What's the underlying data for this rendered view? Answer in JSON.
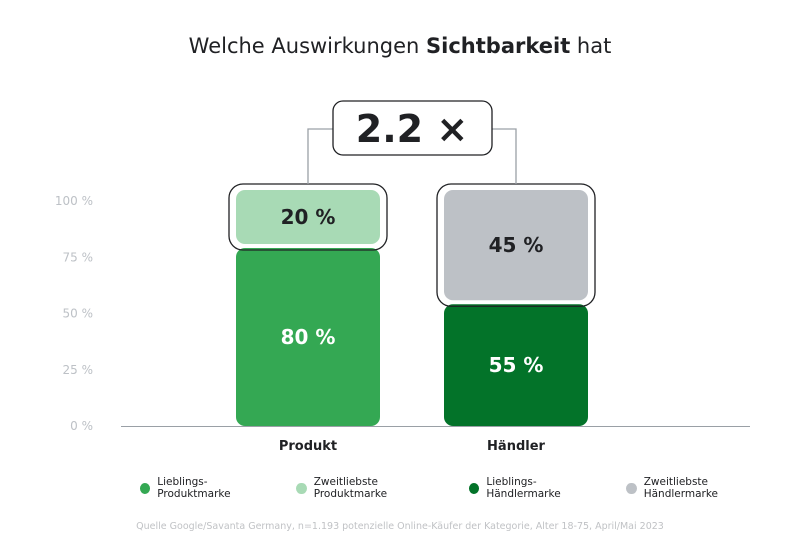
{
  "title": {
    "prefix": "Welche Auswirkungen ",
    "bold": "Sichtbarkeit",
    "suffix": " hat"
  },
  "multiplier_label": "2.2 ×",
  "source": "Quelle Google/Savanta Germany, n=1.193 potenzielle Online-Käufer der Kategorie, Alter 18-75, April/Mai 2023",
  "chart_data": {
    "type": "bar",
    "stacked": true,
    "categories": [
      "Produkt",
      "Händler"
    ],
    "ylim": [
      0,
      100
    ],
    "yticks": [
      "0 %",
      "25 %",
      "50 %",
      "75 %",
      "100 %"
    ],
    "yticks_values": [
      0,
      25,
      50,
      75,
      100
    ],
    "grid": false,
    "legend_position": "bottom",
    "series": [
      {
        "name": "Lieblings-Produktmarke",
        "values": [
          80,
          null
        ],
        "color": "#34a853",
        "labels": [
          "80 %",
          ""
        ],
        "label_color": "#ffffff"
      },
      {
        "name": "Zweitliebste Produktmarke",
        "values": [
          20,
          null
        ],
        "color": "#a8dab5",
        "labels": [
          "20 %",
          ""
        ],
        "label_color": "#202124"
      },
      {
        "name": "Lieblings-Händlermarke",
        "values": [
          null,
          55
        ],
        "color": "#037329",
        "labels": [
          "",
          "55 %"
        ],
        "label_color": "#ffffff"
      },
      {
        "name": "Zweitliebste Händlermarke",
        "values": [
          null,
          45
        ],
        "color": "#bdc1c6",
        "labels": [
          "",
          "45 %"
        ],
        "label_color": "#202124"
      }
    ]
  }
}
